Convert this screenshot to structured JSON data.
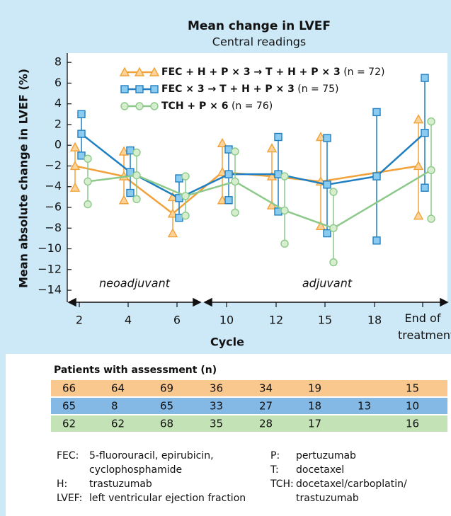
{
  "chart_data": {
    "type": "line",
    "title": "Mean change in LVEF",
    "subtitle": "Central readings",
    "x_label": "Cycle",
    "y_label": "Mean absolute change in LVEF (%)",
    "phases": [
      "neoadjuvant",
      "adjuvant"
    ],
    "categories": [
      "2",
      "4",
      "6",
      "10",
      "12",
      "15",
      "18",
      "End of treatment"
    ],
    "ylim": [
      -15.5,
      8.9
    ],
    "yticks": [
      8,
      6,
      4,
      2,
      0,
      {
        "value": -2,
        "label": "−2"
      },
      {
        "value": -4,
        "label": "−4"
      },
      {
        "value": -6,
        "label": "−6"
      },
      {
        "value": -8,
        "label": "−8"
      },
      {
        "value": -10,
        "label": "−10"
      },
      {
        "value": -12,
        "label": "−12"
      },
      {
        "value": -14,
        "label": "−14"
      }
    ],
    "series": [
      {
        "name": "FEC + H + P × 3 → T + H + P × 3",
        "note": "(n = 72)",
        "marker": "triangle",
        "color": "#f2a23a",
        "fill": "#fcd49a",
        "values": [
          -2.0,
          -3.0,
          -6.6,
          -2.6,
          -3.0,
          -3.5,
          null,
          -2.0
        ],
        "lower": [
          -4.1,
          -5.3,
          -8.5,
          -5.3,
          -5.8,
          -7.8,
          null,
          -6.8
        ],
        "upper": [
          -0.2,
          -0.6,
          -5.0,
          0.2,
          -0.3,
          0.8,
          null,
          2.5
        ]
      },
      {
        "name": "FEC × 3 → T + H + P × 3",
        "note": "(n = 75)",
        "marker": "square",
        "color": "#1f7fc0",
        "fill": "#8ccbf0",
        "values": [
          1.1,
          -2.6,
          -5.1,
          -2.8,
          -2.8,
          -3.8,
          -3.0,
          1.2
        ],
        "lower": [
          -1.0,
          -4.6,
          -7.0,
          -5.3,
          -6.4,
          -8.5,
          -9.2,
          -4.1
        ],
        "upper": [
          3.0,
          -0.5,
          -3.2,
          -0.4,
          0.8,
          0.7,
          3.2,
          6.5
        ]
      },
      {
        "name": "TCH + P × 6",
        "note": "(n = 76)",
        "marker": "circle",
        "color": "#8cc98a",
        "fill": "#d6eecd",
        "values": [
          -3.5,
          -2.9,
          -4.9,
          -3.5,
          -6.3,
          -8.0,
          null,
          -2.4
        ],
        "lower": [
          -5.7,
          -5.2,
          -6.8,
          -6.5,
          -9.5,
          -11.3,
          null,
          -7.1
        ],
        "upper": [
          -1.3,
          -0.7,
          -3.0,
          -0.6,
          -3.0,
          -4.5,
          null,
          2.3
        ]
      }
    ]
  },
  "assessment_table": {
    "title": "Patients with assessment (n)",
    "rows": [
      {
        "color": "#f9c88f",
        "values": [
          66,
          64,
          69,
          36,
          34,
          19,
          null,
          15
        ]
      },
      {
        "color": "#84b9e6",
        "values": [
          65,
          8,
          65,
          33,
          27,
          18,
          13,
          10
        ]
      },
      {
        "color": "#c3e2b5",
        "values": [
          62,
          62,
          68,
          35,
          28,
          17,
          null,
          16
        ]
      }
    ]
  },
  "footnotes": {
    "left": [
      {
        "abbr": "FEC:",
        "text": "5-fluorouracil, epirubicin,",
        "text2": "cyclophosphamide"
      },
      {
        "abbr": "H:",
        "text": "trastuzumab"
      },
      {
        "abbr": "LVEF:",
        "text": "left ventricular ejection fraction"
      }
    ],
    "right": [
      {
        "abbr": "P:",
        "text": "pertuzumab"
      },
      {
        "abbr": "T:",
        "text": "docetaxel"
      },
      {
        "abbr": "TCH:",
        "text": "docetaxel/carboplatin/",
        "text2": "trastuzumab"
      }
    ]
  }
}
